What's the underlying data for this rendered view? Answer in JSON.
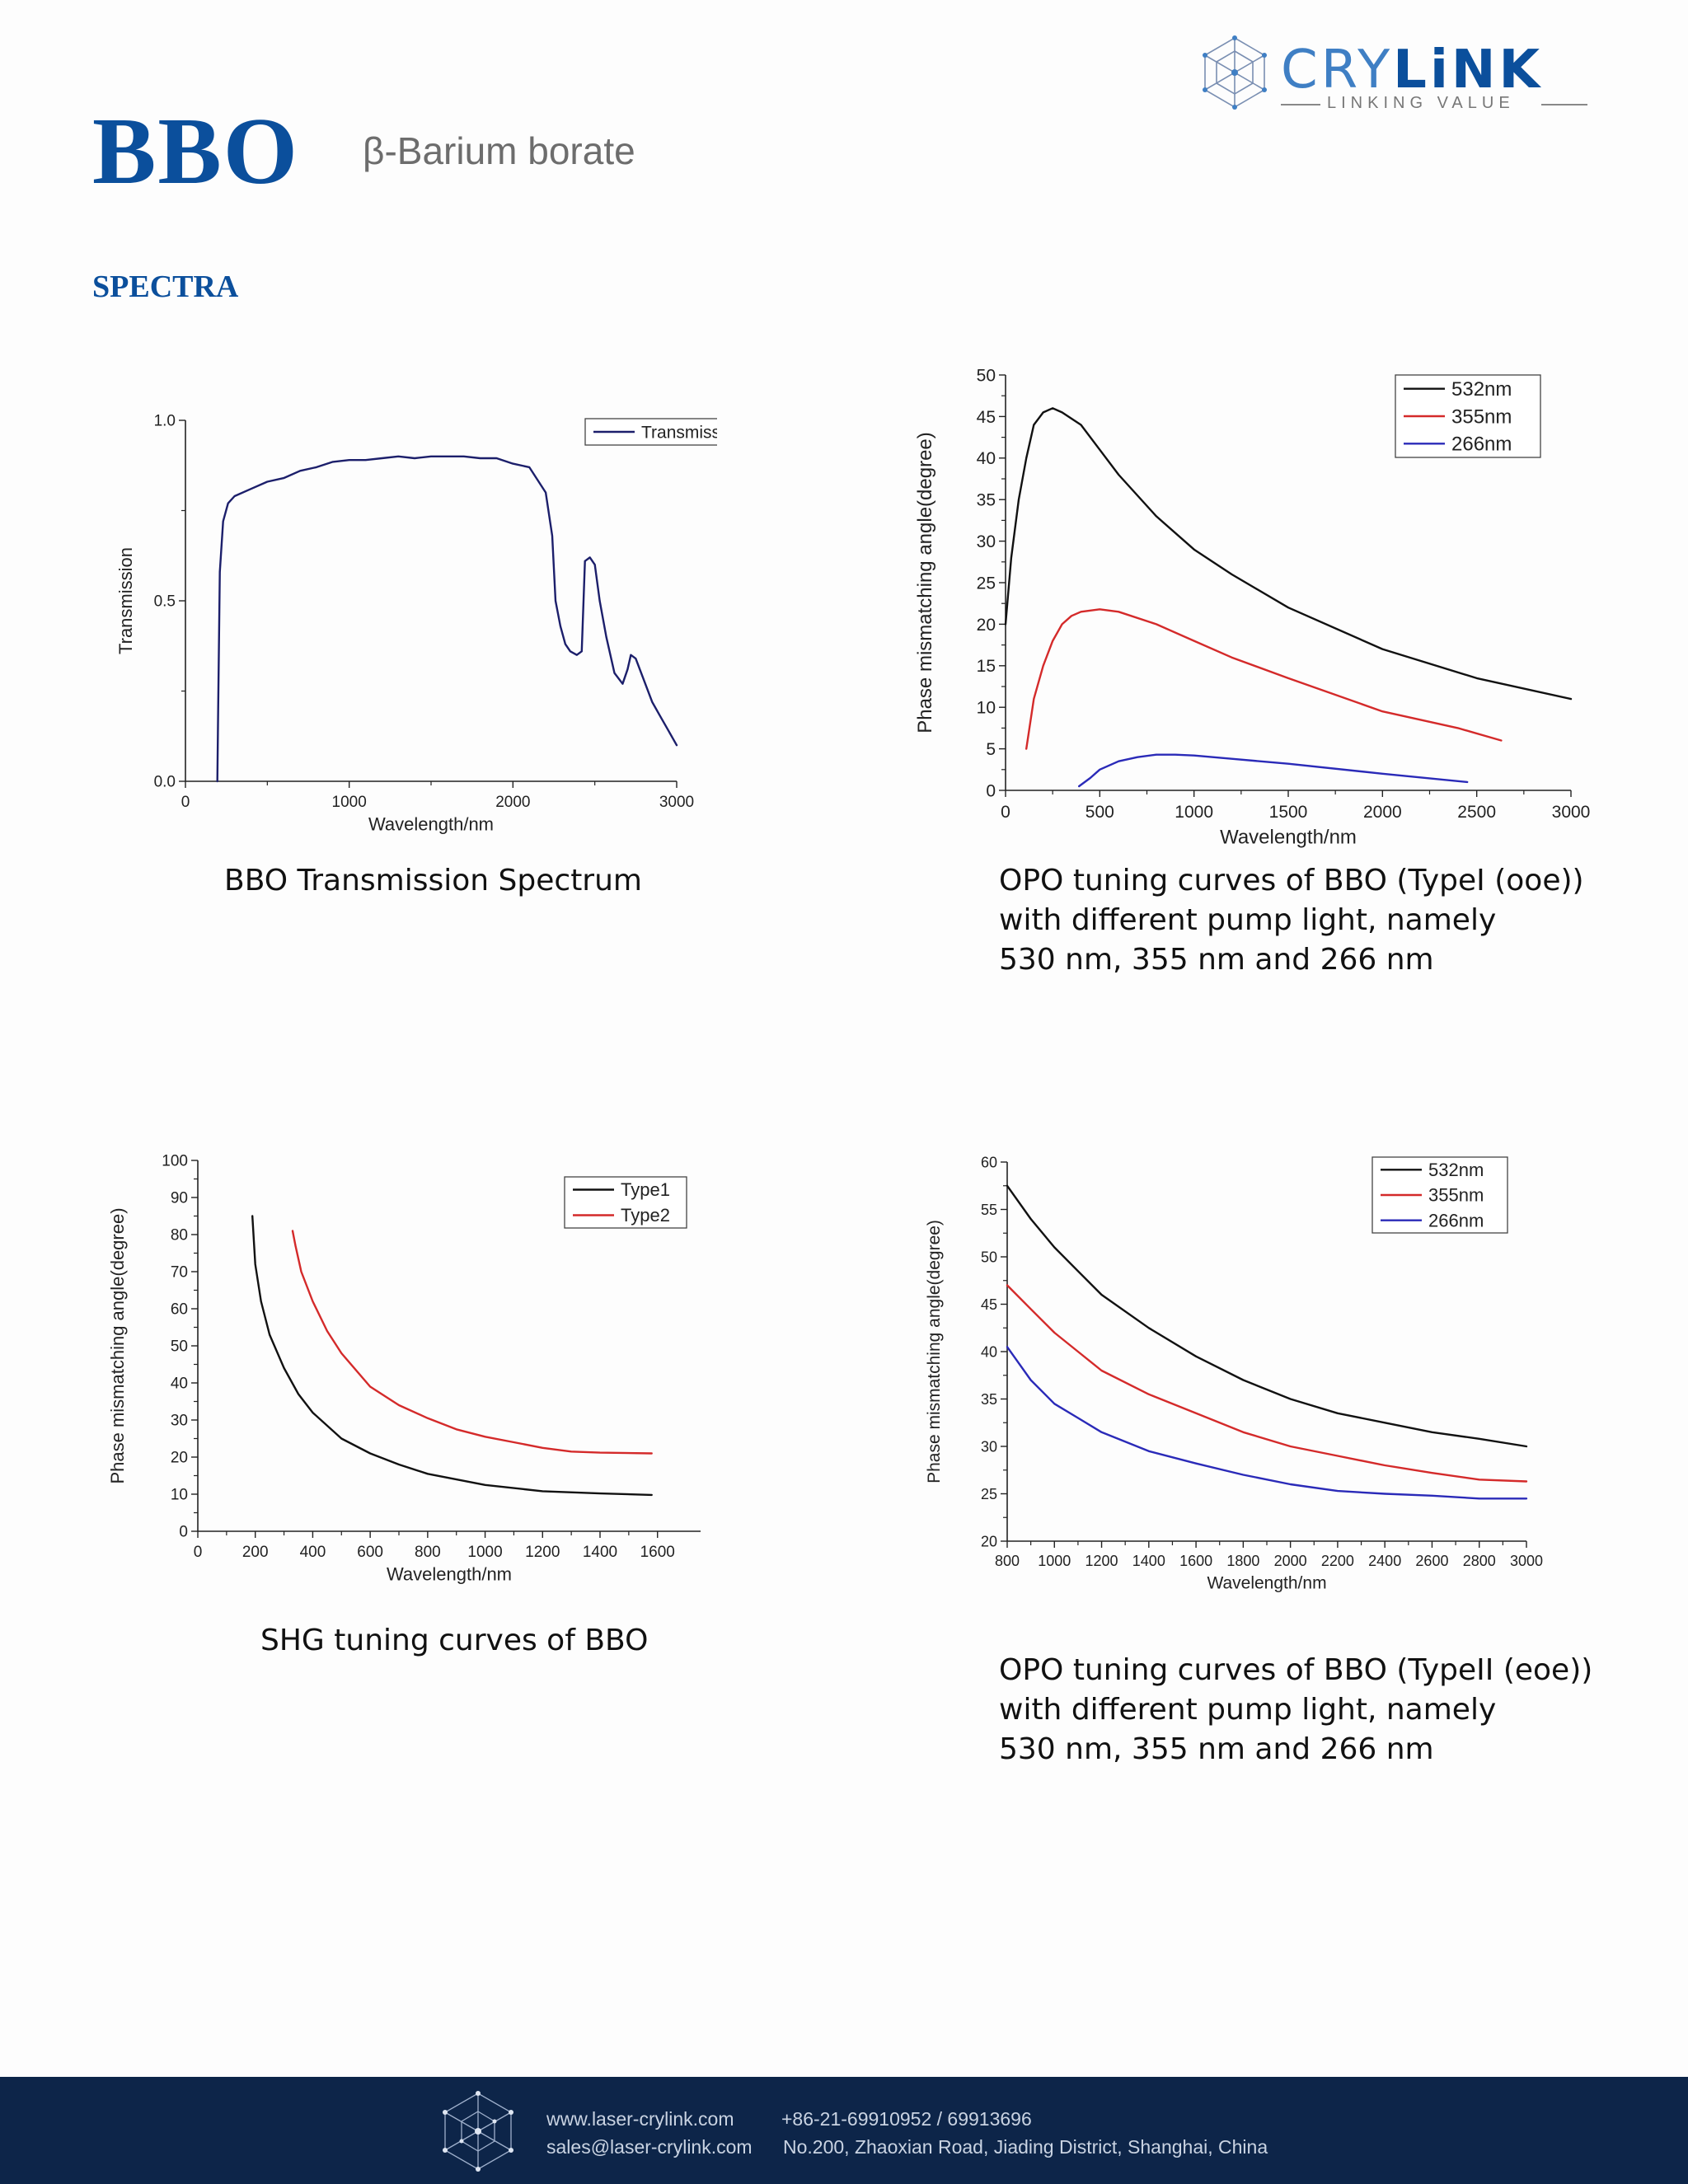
{
  "header": {
    "title": "BBO",
    "subtitle": "β-Barium borate",
    "logo_name": "CRYLINK",
    "logo_part1": "CRY",
    "logo_part2": "LiNK",
    "logo_tagline": "LINKING VALUE"
  },
  "section_title": "SPECTRA",
  "captions": {
    "transmission": "BBO Transmission Spectrum",
    "opo_type1_line1": "OPO tuning curves of BBO (TypeI (ooe))",
    "opo_type1_line2": "with different pump light, namely",
    "opo_type1_line3": "530 nm, 355 nm and 266 nm",
    "shg": "SHG tuning curves of BBO",
    "opo_type2_line1": "OPO tuning curves of BBO (TypeII (eoe))",
    "opo_type2_line2": "with different pump light, namely",
    "opo_type2_line3": "530 nm, 355 nm and 266 nm"
  },
  "footer": {
    "website": "www.laser-crylink.com",
    "phone": "+86-21-69910952  / 69913696",
    "email": "sales@laser-crylink.com",
    "address": "No.200, Zhaoxian Road, Jiading District, Shanghai, China"
  },
  "colors": {
    "brand": "#0b4f9c",
    "footer_bg": "#0d2549",
    "series_black": "#111111",
    "series_red": "#d42a2a",
    "series_blue": "#2a2ab8",
    "series_navy": "#1c1f6b"
  },
  "chart_data": [
    {
      "type": "line",
      "title": "BBO Transmission Spectrum",
      "xlabel": "Wavelength/nm",
      "ylabel": "Transmission",
      "xlim": [
        0,
        3000
      ],
      "ylim": [
        0,
        1.0
      ],
      "xticks": [
        0,
        1000,
        2000,
        3000
      ],
      "yticks": [
        0.0,
        0.5,
        1.0
      ],
      "xtick_labels": [
        "0",
        "1000",
        "2000",
        "3000"
      ],
      "ytick_labels": [
        "0.0",
        "0.5",
        "1.0"
      ],
      "legend": "top-right",
      "series": [
        {
          "name": "Transmission",
          "color": "#1c1f6b",
          "x": [
            195,
            200,
            210,
            230,
            260,
            300,
            400,
            500,
            600,
            700,
            800,
            900,
            1000,
            1100,
            1200,
            1300,
            1400,
            1500,
            1600,
            1700,
            1800,
            1900,
            2000,
            2100,
            2200,
            2240,
            2260,
            2290,
            2320,
            2350,
            2390,
            2420,
            2440,
            2470,
            2500,
            2530,
            2570,
            2620,
            2670,
            2700,
            2720,
            2750,
            2800,
            2850,
            2900,
            2950,
            3000
          ],
          "y": [
            0.0,
            0.2,
            0.58,
            0.72,
            0.77,
            0.79,
            0.81,
            0.83,
            0.84,
            0.86,
            0.87,
            0.885,
            0.89,
            0.89,
            0.895,
            0.9,
            0.895,
            0.9,
            0.9,
            0.9,
            0.895,
            0.895,
            0.88,
            0.87,
            0.8,
            0.68,
            0.5,
            0.43,
            0.38,
            0.36,
            0.35,
            0.36,
            0.61,
            0.62,
            0.6,
            0.5,
            0.4,
            0.3,
            0.27,
            0.31,
            0.35,
            0.34,
            0.28,
            0.22,
            0.18,
            0.14,
            0.1
          ]
        }
      ]
    },
    {
      "type": "line",
      "title": "OPO tuning curves of BBO (TypeI (ooe))",
      "xlabel": "Wavelength/nm",
      "ylabel": "Phase mismatching angle(degree)",
      "xlim": [
        0,
        3000
      ],
      "ylim": [
        0,
        50
      ],
      "xticks": [
        0,
        500,
        1000,
        1500,
        2000,
        2500,
        3000
      ],
      "yticks": [
        0,
        5,
        10,
        15,
        20,
        25,
        30,
        35,
        40,
        45,
        50
      ],
      "xtick_labels": [
        "0",
        "500",
        "1000",
        "1500",
        "2000",
        "2500",
        "3000"
      ],
      "ytick_labels": [
        "0",
        "5",
        "10",
        "15",
        "20",
        "25",
        "30",
        "35",
        "40",
        "45",
        "50"
      ],
      "legend": "top-right",
      "series": [
        {
          "name": "532nm",
          "color": "#111111",
          "x": [
            0,
            30,
            70,
            110,
            150,
            200,
            250,
            300,
            400,
            500,
            600,
            800,
            1000,
            1200,
            1500,
            2000,
            2500,
            3000
          ],
          "y": [
            20,
            28,
            35,
            40,
            44,
            45.5,
            46,
            45.5,
            44,
            41,
            38,
            33,
            29,
            26,
            22,
            17,
            13.5,
            11
          ]
        },
        {
          "name": "355nm",
          "color": "#d42a2a",
          "x": [
            110,
            150,
            200,
            250,
            300,
            350,
            400,
            500,
            600,
            800,
            1000,
            1200,
            1500,
            2000,
            2400,
            2630
          ],
          "y": [
            5,
            11,
            15,
            18,
            20,
            21,
            21.5,
            21.8,
            21.5,
            20,
            18,
            16,
            13.5,
            9.5,
            7.5,
            6
          ]
        },
        {
          "name": "266nm",
          "color": "#2a2ab8",
          "x": [
            390,
            450,
            500,
            600,
            700,
            800,
            900,
            1000,
            1200,
            1500,
            2000,
            2450
          ],
          "y": [
            0.5,
            1.5,
            2.5,
            3.5,
            4,
            4.3,
            4.3,
            4.2,
            3.8,
            3.2,
            2,
            1
          ]
        }
      ]
    },
    {
      "type": "line",
      "title": "SHG tuning curves of BBO",
      "xlabel": "Wavelength/nm",
      "ylabel": "Phase mismatching angle(degree)",
      "xlim": [
        0,
        1750
      ],
      "ylim": [
        0,
        100
      ],
      "xticks": [
        0,
        200,
        400,
        600,
        800,
        1000,
        1200,
        1400,
        1600
      ],
      "yticks": [
        0,
        10,
        20,
        30,
        40,
        50,
        60,
        70,
        80,
        90,
        100
      ],
      "xtick_labels": [
        "0",
        "200",
        "400",
        "600",
        "800",
        "1000",
        "1200",
        "1400",
        "1600"
      ],
      "ytick_labels": [
        "0",
        "10",
        "20",
        "30",
        "40",
        "50",
        "60",
        "70",
        "80",
        "90",
        "100"
      ],
      "legend": "top-right",
      "series": [
        {
          "name": "Type1",
          "color": "#111111",
          "x": [
            190,
            200,
            220,
            250,
            300,
            350,
            400,
            500,
            600,
            700,
            800,
            1000,
            1200,
            1400,
            1580
          ],
          "y": [
            85,
            72,
            62,
            53,
            44,
            37,
            32,
            25,
            21,
            18,
            15.5,
            12.5,
            10.8,
            10.2,
            9.8
          ]
        },
        {
          "name": "Type2",
          "color": "#d42a2a",
          "x": [
            330,
            340,
            360,
            400,
            450,
            500,
            600,
            700,
            800,
            900,
            1000,
            1100,
            1200,
            1300,
            1400,
            1580
          ],
          "y": [
            81,
            77,
            70,
            62,
            54,
            48,
            39,
            34,
            30.5,
            27.5,
            25.5,
            24,
            22.5,
            21.5,
            21.2,
            21
          ]
        }
      ]
    },
    {
      "type": "line",
      "title": "OPO tuning curves of BBO (TypeII (eoe))",
      "xlabel": "Wavelength/nm",
      "ylabel": "Phase mismatching angle(degree)",
      "xlim": [
        800,
        3000
      ],
      "ylim": [
        20,
        60
      ],
      "xticks": [
        800,
        1000,
        1200,
        1400,
        1600,
        1800,
        2000,
        2200,
        2400,
        2600,
        2800,
        3000
      ],
      "yticks": [
        20,
        25,
        30,
        35,
        40,
        45,
        50,
        55,
        60
      ],
      "xtick_labels": [
        "800",
        "1000",
        "1200",
        "1400",
        "1600",
        "1800",
        "2000",
        "2200",
        "2400",
        "2600",
        "2800",
        "3000"
      ],
      "ytick_labels": [
        "20",
        "25",
        "30",
        "35",
        "40",
        "45",
        "50",
        "55",
        "60"
      ],
      "legend": "top-right",
      "series": [
        {
          "name": "532nm",
          "color": "#111111",
          "x": [
            800,
            900,
            1000,
            1100,
            1200,
            1400,
            1600,
            1800,
            2000,
            2200,
            2400,
            2600,
            2800,
            3000
          ],
          "y": [
            57.5,
            54,
            51,
            48.5,
            46,
            42.5,
            39.5,
            37,
            35,
            33.5,
            32.5,
            31.5,
            30.8,
            30
          ]
        },
        {
          "name": "355nm",
          "color": "#d42a2a",
          "x": [
            800,
            900,
            1000,
            1100,
            1200,
            1400,
            1600,
            1800,
            2000,
            2200,
            2400,
            2600,
            2800,
            3000
          ],
          "y": [
            47,
            44.5,
            42,
            40,
            38,
            35.5,
            33.5,
            31.5,
            30,
            29,
            28,
            27.2,
            26.5,
            26.3
          ]
        },
        {
          "name": "266nm",
          "color": "#2a2ab8",
          "x": [
            800,
            900,
            1000,
            1100,
            1200,
            1400,
            1600,
            1800,
            2000,
            2200,
            2400,
            2600,
            2800,
            3000
          ],
          "y": [
            40.5,
            37,
            34.5,
            33,
            31.5,
            29.5,
            28.2,
            27,
            26,
            25.3,
            25,
            24.8,
            24.5,
            24.5
          ]
        }
      ]
    }
  ]
}
